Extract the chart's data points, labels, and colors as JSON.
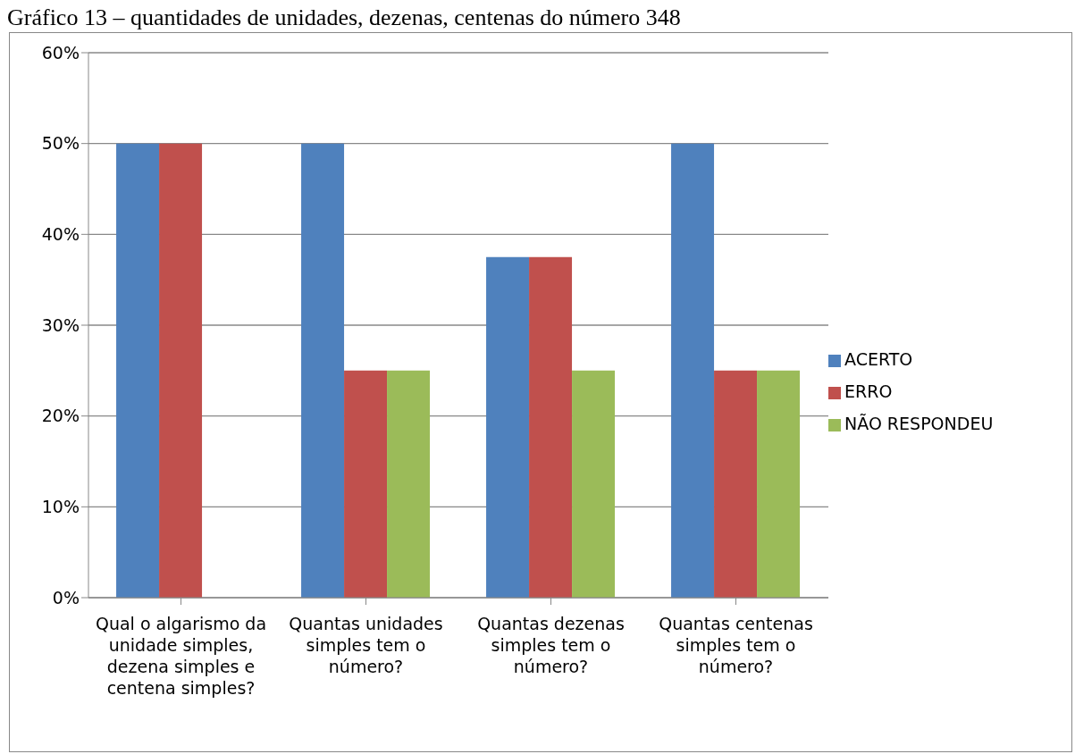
{
  "chart_data": {
    "type": "bar",
    "title": "Gráfico 13 – quantidades de unidades, dezenas, centenas do número 348",
    "categories": [
      "Qual o algarismo da unidade simples, dezena simples e centena simples?",
      "Quantas unidades simples tem o número?",
      "Quantas dezenas simples tem o número?",
      "Quantas centenas simples tem o número?"
    ],
    "series": [
      {
        "name": "ACERTO",
        "color": "#4f81bd",
        "values": [
          50,
          50,
          37.5,
          50
        ]
      },
      {
        "name": "ERRO",
        "color": "#c0504d",
        "values": [
          50,
          25,
          37.5,
          25
        ]
      },
      {
        "name": "NÃO RESPONDEU",
        "color": "#9bbb59",
        "values": [
          0,
          25,
          25,
          25
        ]
      }
    ],
    "ylim": [
      0,
      60
    ],
    "yticks": [
      {
        "value": 0,
        "label": "0%"
      },
      {
        "value": 10,
        "label": "10%"
      },
      {
        "value": 20,
        "label": "20%"
      },
      {
        "value": 30,
        "label": "30%"
      },
      {
        "value": 40,
        "label": "40%"
      },
      {
        "value": 50,
        "label": "50%"
      },
      {
        "value": 60,
        "label": "60%"
      }
    ],
    "grid": "y",
    "legend": "right"
  }
}
